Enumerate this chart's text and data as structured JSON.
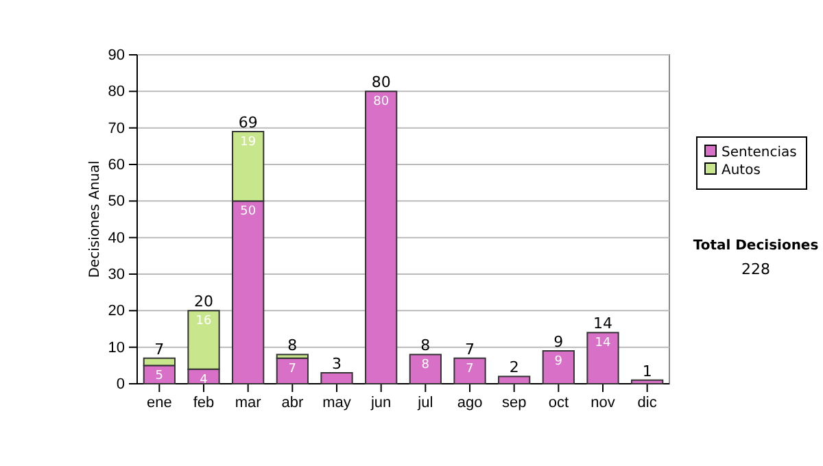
{
  "chart_data": {
    "type": "bar",
    "stacked": true,
    "ylabel": "Decisiones Anual",
    "categories": [
      "ene",
      "feb",
      "mar",
      "abr",
      "may",
      "jun",
      "jul",
      "ago",
      "sep",
      "oct",
      "nov",
      "dic"
    ],
    "series": [
      {
        "name": "Sentencias",
        "color": "#d870c8",
        "values": [
          5,
          4,
          50,
          7,
          3,
          80,
          8,
          7,
          2,
          9,
          14,
          1
        ],
        "value_labels": [
          "5",
          "4",
          "50",
          "7",
          null,
          "80",
          "8",
          "7",
          null,
          "9",
          "14",
          null
        ]
      },
      {
        "name": "Autos",
        "color": "#c8e68c",
        "values": [
          2,
          16,
          19,
          1,
          0,
          0,
          0,
          0,
          0,
          0,
          0,
          0
        ],
        "value_labels": [
          null,
          "16",
          "19",
          null,
          null,
          null,
          null,
          null,
          null,
          null,
          null,
          null
        ]
      }
    ],
    "totals": [
      "7",
      "20",
      "69",
      "8",
      "3",
      "80",
      "8",
      "7",
      "2",
      "9",
      "14",
      "1"
    ],
    "ylim": [
      0,
      90
    ],
    "yticks": [
      0,
      10,
      20,
      30,
      40,
      50,
      60,
      70,
      80,
      90
    ],
    "grid": "y",
    "legend": "right",
    "annotations": [
      "Total Decisiones",
      "228"
    ]
  }
}
